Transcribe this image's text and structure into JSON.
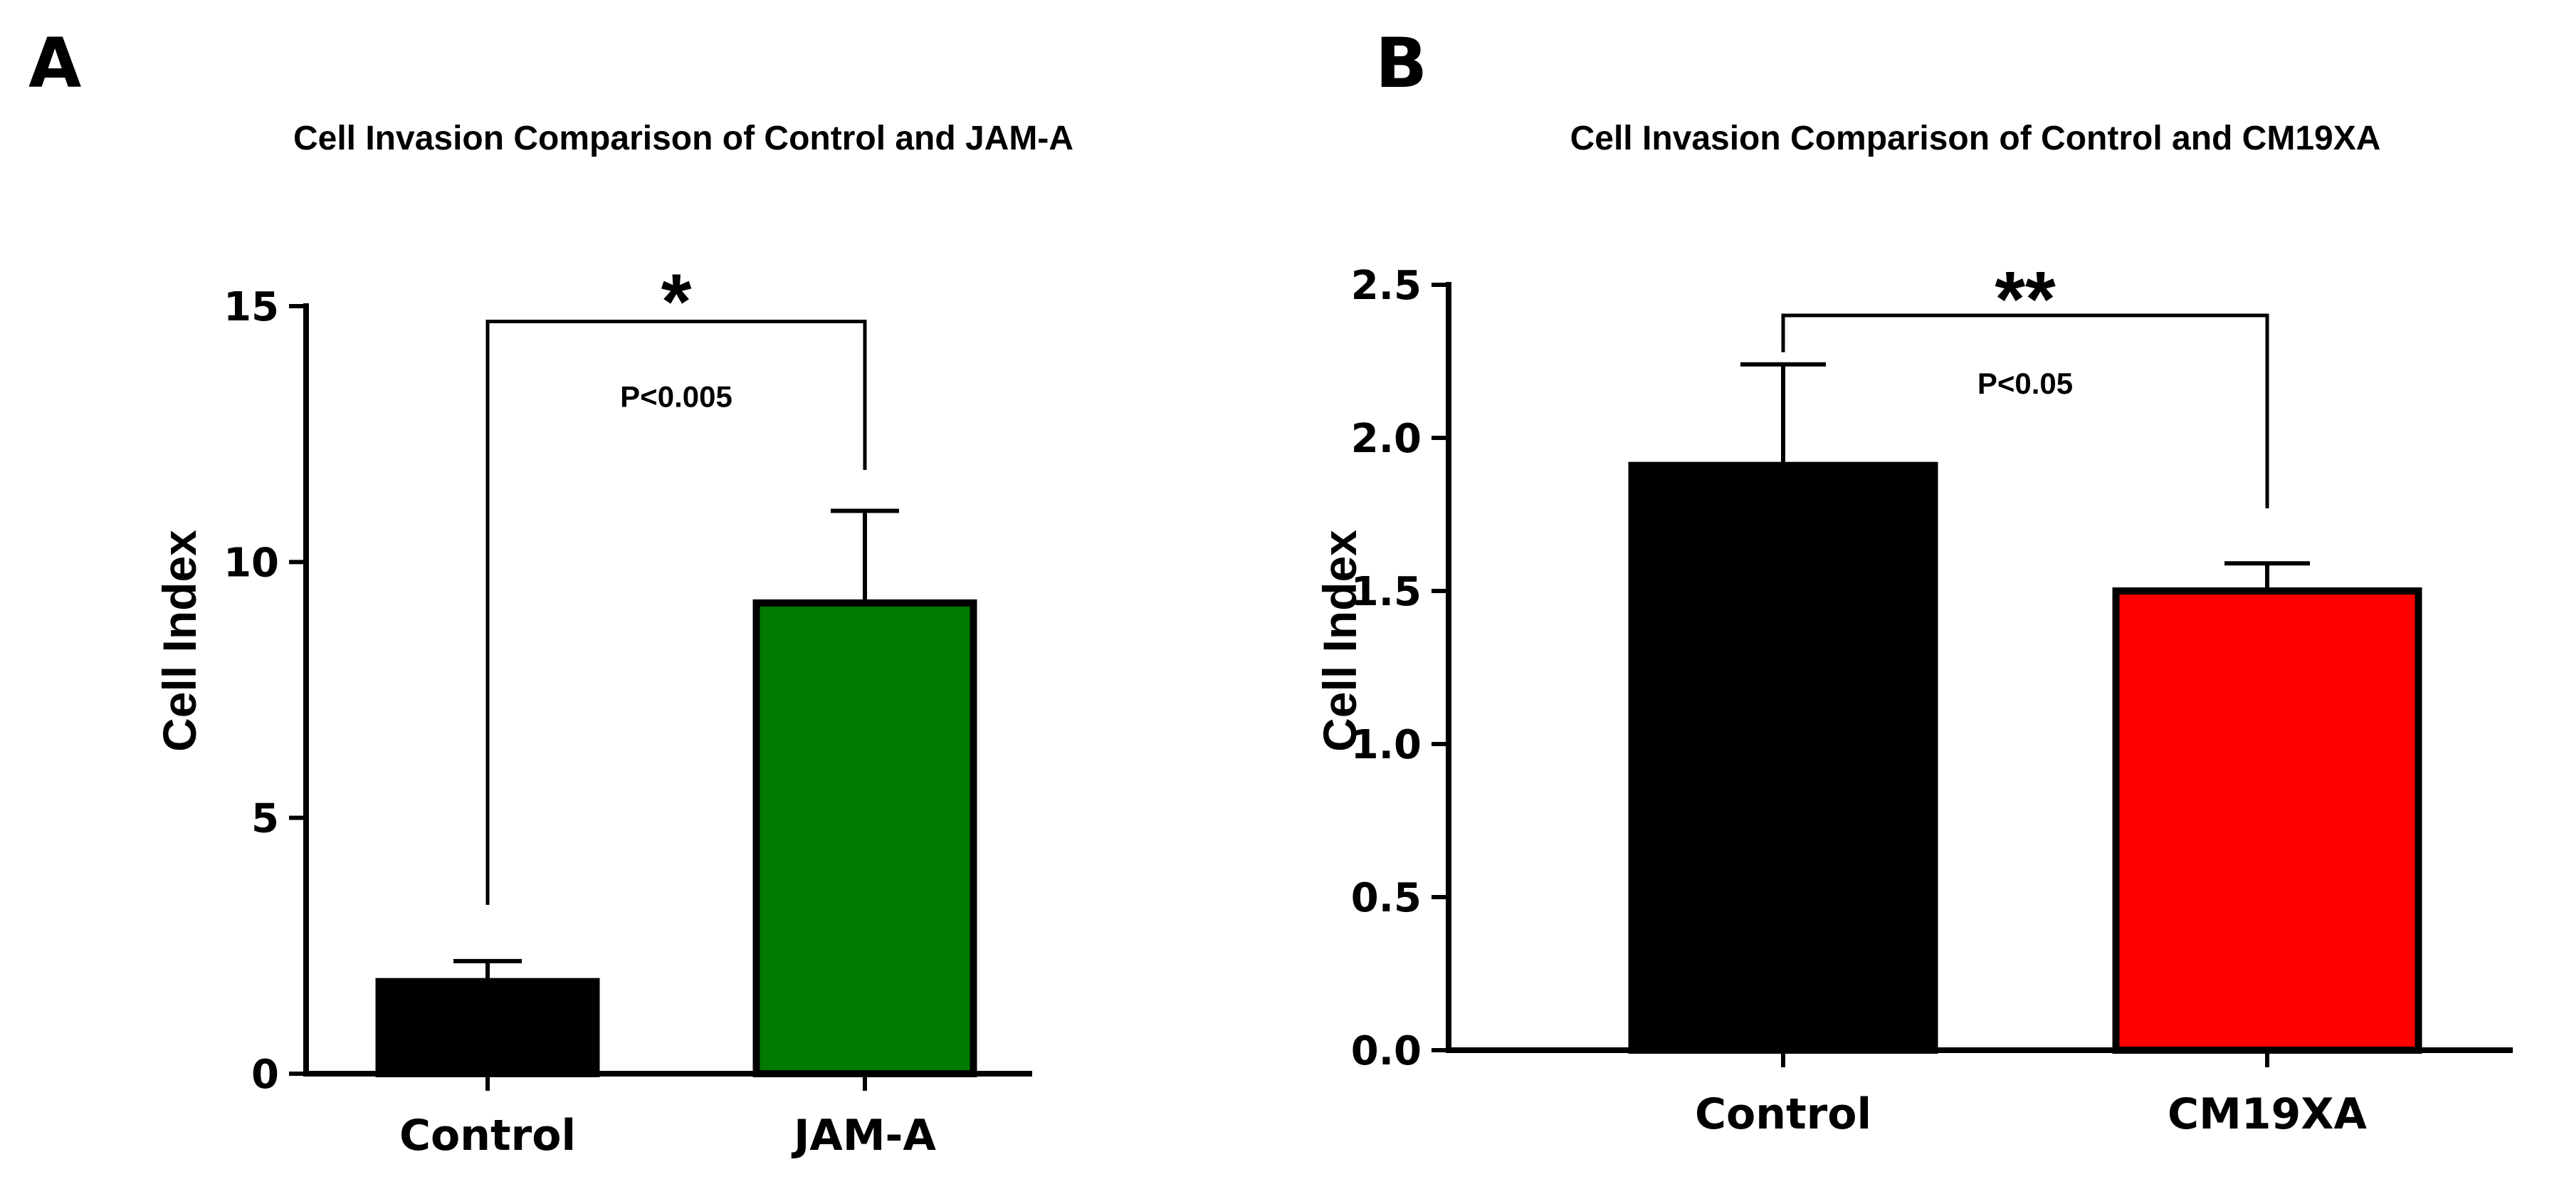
{
  "chart_data": [
    {
      "panel": "A",
      "type": "bar",
      "title": "Cell Invasion Comparison of Control and JAM-A",
      "xlabel": "",
      "ylabel": "Cell Index",
      "ylim": [
        0,
        15
      ],
      "yticks": [
        0,
        5,
        10,
        15
      ],
      "ytick_labels": [
        "0",
        "5",
        "10",
        "15"
      ],
      "categories": [
        "Control",
        "JAM-A"
      ],
      "values": [
        1.8,
        9.2
      ],
      "errors": [
        0.4,
        1.8
      ],
      "colors": [
        "#000000",
        "#007a00"
      ],
      "annotation": {
        "significance": "*",
        "p_value": "P<0.005",
        "bracket_level": 14.7,
        "left_drop_to": 3.3,
        "right_drop_to": 11.8
      }
    },
    {
      "panel": "B",
      "type": "bar",
      "title": "Cell Invasion Comparison of Control and CM19XA",
      "xlabel": "",
      "ylabel": "Cell Index",
      "ylim": [
        0,
        2.5
      ],
      "yticks": [
        0,
        0.5,
        1.0,
        1.5,
        2.0,
        2.5
      ],
      "ytick_labels": [
        "0.0",
        "0.5",
        "1.0",
        "1.5",
        "2.0",
        "2.5"
      ],
      "categories": [
        "Control",
        "CM19XA"
      ],
      "values": [
        1.91,
        1.5
      ],
      "errors": [
        0.33,
        0.09
      ],
      "colors": [
        "#000000",
        "#ff0000"
      ],
      "annotation": {
        "significance": "**",
        "p_value": "P<0.05",
        "bracket_level": 2.4,
        "left_drop_to": 2.28,
        "right_drop_to": 1.77
      }
    }
  ]
}
